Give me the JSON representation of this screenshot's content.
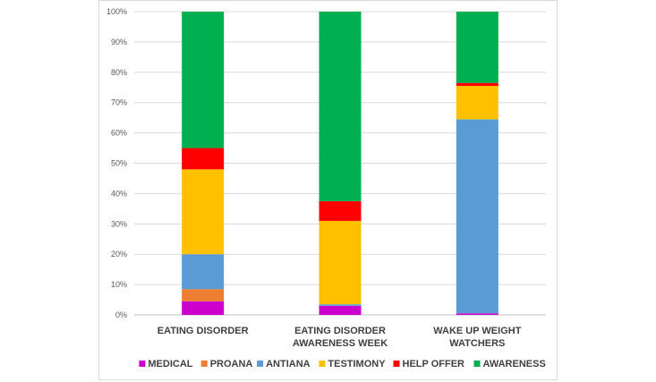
{
  "chart_data": {
    "type": "bar",
    "stacked": true,
    "percent": true,
    "categories": [
      [
        "EATING DISORDER"
      ],
      [
        "EATING DISORDER",
        "AWARENESS WEEK"
      ],
      [
        "WAKE UP WEIGHT",
        "WATCHERS"
      ]
    ],
    "y_ticks": [
      "0%",
      "10%",
      "20%",
      "30%",
      "40%",
      "50%",
      "60%",
      "70%",
      "80%",
      "90%",
      "100%"
    ],
    "ylim": [
      0,
      100
    ],
    "grid": true,
    "legend_position": "bottom",
    "series": [
      {
        "name": "MEDICAL",
        "color": "#cc00cc",
        "values": [
          4.5,
          3,
          0.5
        ]
      },
      {
        "name": "PROANA",
        "color": "#ed7d31",
        "values": [
          4,
          0,
          0
        ]
      },
      {
        "name": "ANTIANA",
        "color": "#5b9bd5",
        "values": [
          11.5,
          0.5,
          64
        ]
      },
      {
        "name": "TESTIMONY",
        "color": "#ffc000",
        "values": [
          28,
          27.5,
          11
        ]
      },
      {
        "name": "HELP OFFER",
        "color": "#ff0000",
        "values": [
          7,
          6.5,
          1
        ]
      },
      {
        "name": "AWARENESS",
        "color": "#00b050",
        "values": [
          45,
          62.5,
          23.5
        ]
      }
    ]
  }
}
